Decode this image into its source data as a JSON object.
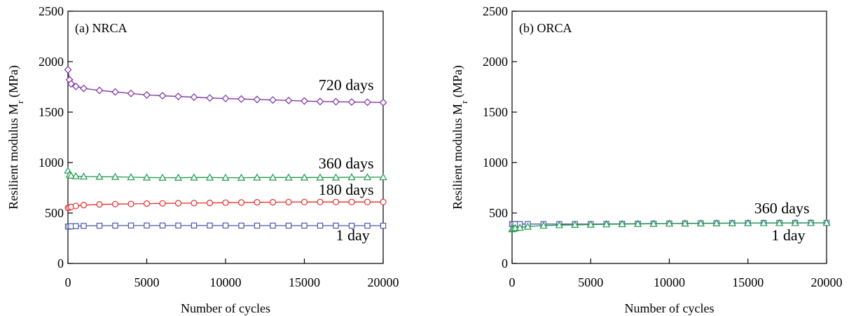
{
  "chart_data": [
    {
      "type": "line",
      "title": "(a) NRCA",
      "xlabel": "Number of cycles",
      "ylabel": "Resilient modulus M",
      "ylabel_sub": "r",
      "ylabel_unit": " (MPa)",
      "xlim": [
        0,
        20000
      ],
      "ylim": [
        0,
        2500
      ],
      "xticks": [
        0,
        5000,
        10000,
        15000,
        20000
      ],
      "yticks": [
        0,
        500,
        1000,
        1500,
        2000,
        2500
      ],
      "grid": false,
      "series": [
        {
          "name": "720 days",
          "marker": "diamond",
          "color": "#7b2fa0",
          "x": [
            0,
            100,
            200,
            500,
            1000,
            2000,
            3000,
            4000,
            5000,
            6000,
            7000,
            8000,
            9000,
            10000,
            11000,
            12000,
            13000,
            14000,
            15000,
            16000,
            17000,
            18000,
            19000,
            20000
          ],
          "y": [
            1920,
            1820,
            1780,
            1755,
            1735,
            1715,
            1700,
            1685,
            1670,
            1662,
            1655,
            1648,
            1640,
            1635,
            1630,
            1625,
            1620,
            1615,
            1610,
            1605,
            1603,
            1600,
            1598,
            1595
          ]
        },
        {
          "name": "360 days",
          "marker": "triangle",
          "color": "#1e9a4a",
          "x": [
            0,
            100,
            200,
            500,
            1000,
            2000,
            3000,
            4000,
            5000,
            6000,
            7000,
            8000,
            9000,
            10000,
            11000,
            12000,
            13000,
            14000,
            15000,
            16000,
            17000,
            18000,
            19000,
            20000
          ],
          "y": [
            920,
            880,
            870,
            865,
            862,
            860,
            858,
            855,
            852,
            850,
            850,
            852,
            852,
            850,
            850,
            852,
            852,
            852,
            852,
            852,
            852,
            855,
            855,
            855
          ]
        },
        {
          "name": "180 days",
          "marker": "circle",
          "color": "#e52a2a",
          "x": [
            0,
            100,
            200,
            500,
            1000,
            2000,
            3000,
            4000,
            5000,
            6000,
            7000,
            8000,
            9000,
            10000,
            11000,
            12000,
            13000,
            14000,
            15000,
            16000,
            17000,
            18000,
            19000,
            20000
          ],
          "y": [
            550,
            555,
            560,
            570,
            578,
            585,
            588,
            590,
            593,
            595,
            597,
            598,
            600,
            602,
            604,
            606,
            607,
            608,
            609,
            609,
            609,
            609,
            609,
            609
          ]
        },
        {
          "name": "1 day",
          "marker": "square",
          "color": "#4a5aa8",
          "x": [
            0,
            100,
            200,
            500,
            1000,
            2000,
            3000,
            4000,
            5000,
            6000,
            7000,
            8000,
            9000,
            10000,
            11000,
            12000,
            13000,
            14000,
            15000,
            16000,
            17000,
            18000,
            19000,
            20000
          ],
          "y": [
            365,
            367,
            368,
            370,
            372,
            374,
            375,
            376,
            376,
            376,
            376,
            376,
            376,
            376,
            375,
            375,
            375,
            375,
            375,
            375,
            375,
            374,
            374,
            374
          ]
        }
      ],
      "annotations": [
        {
          "text": "720 days",
          "x": 15900,
          "y": 1720
        },
        {
          "text": "360 days",
          "x": 15900,
          "y": 940
        },
        {
          "text": "180 days",
          "x": 15900,
          "y": 680
        },
        {
          "text": "1 day",
          "x": 17000,
          "y": 230
        }
      ]
    },
    {
      "type": "line",
      "title": "(b) ORCA",
      "xlabel": "Number of cycles",
      "ylabel": "Resilient modulus M",
      "ylabel_sub": "r",
      "ylabel_unit": " (MPa)",
      "xlim": [
        0,
        20000
      ],
      "ylim": [
        0,
        2500
      ],
      "xticks": [
        0,
        5000,
        10000,
        15000,
        20000
      ],
      "yticks": [
        0,
        500,
        1000,
        1500,
        2000,
        2500
      ],
      "grid": false,
      "series": [
        {
          "name": "1 day",
          "marker": "square",
          "color": "#4a5aa8",
          "x": [
            0,
            100,
            200,
            500,
            1000,
            2000,
            3000,
            4000,
            5000,
            6000,
            7000,
            8000,
            9000,
            10000,
            11000,
            12000,
            13000,
            14000,
            15000,
            16000,
            17000,
            18000,
            19000,
            20000
          ],
          "y": [
            390,
            390,
            390,
            390,
            390,
            390,
            390,
            390,
            390,
            392,
            393,
            394,
            395,
            396,
            397,
            398,
            399,
            400,
            400,
            401,
            402,
            402,
            403,
            403
          ]
        },
        {
          "name": "360 days",
          "marker": "triangle",
          "color": "#1e9a4a",
          "x": [
            0,
            100,
            200,
            500,
            1000,
            2000,
            3000,
            4000,
            5000,
            6000,
            7000,
            8000,
            9000,
            10000,
            11000,
            12000,
            13000,
            14000,
            15000,
            16000,
            17000,
            18000,
            19000,
            20000
          ],
          "y": [
            340,
            345,
            350,
            355,
            365,
            375,
            380,
            383,
            385,
            388,
            390,
            392,
            393,
            395,
            396,
            397,
            398,
            399,
            400,
            400,
            401,
            401,
            402,
            402
          ]
        }
      ],
      "annotations": [
        {
          "text": "360 days",
          "x": 15400,
          "y": 495
        },
        {
          "text": "1 day",
          "x": 16500,
          "y": 230
        }
      ]
    }
  ]
}
